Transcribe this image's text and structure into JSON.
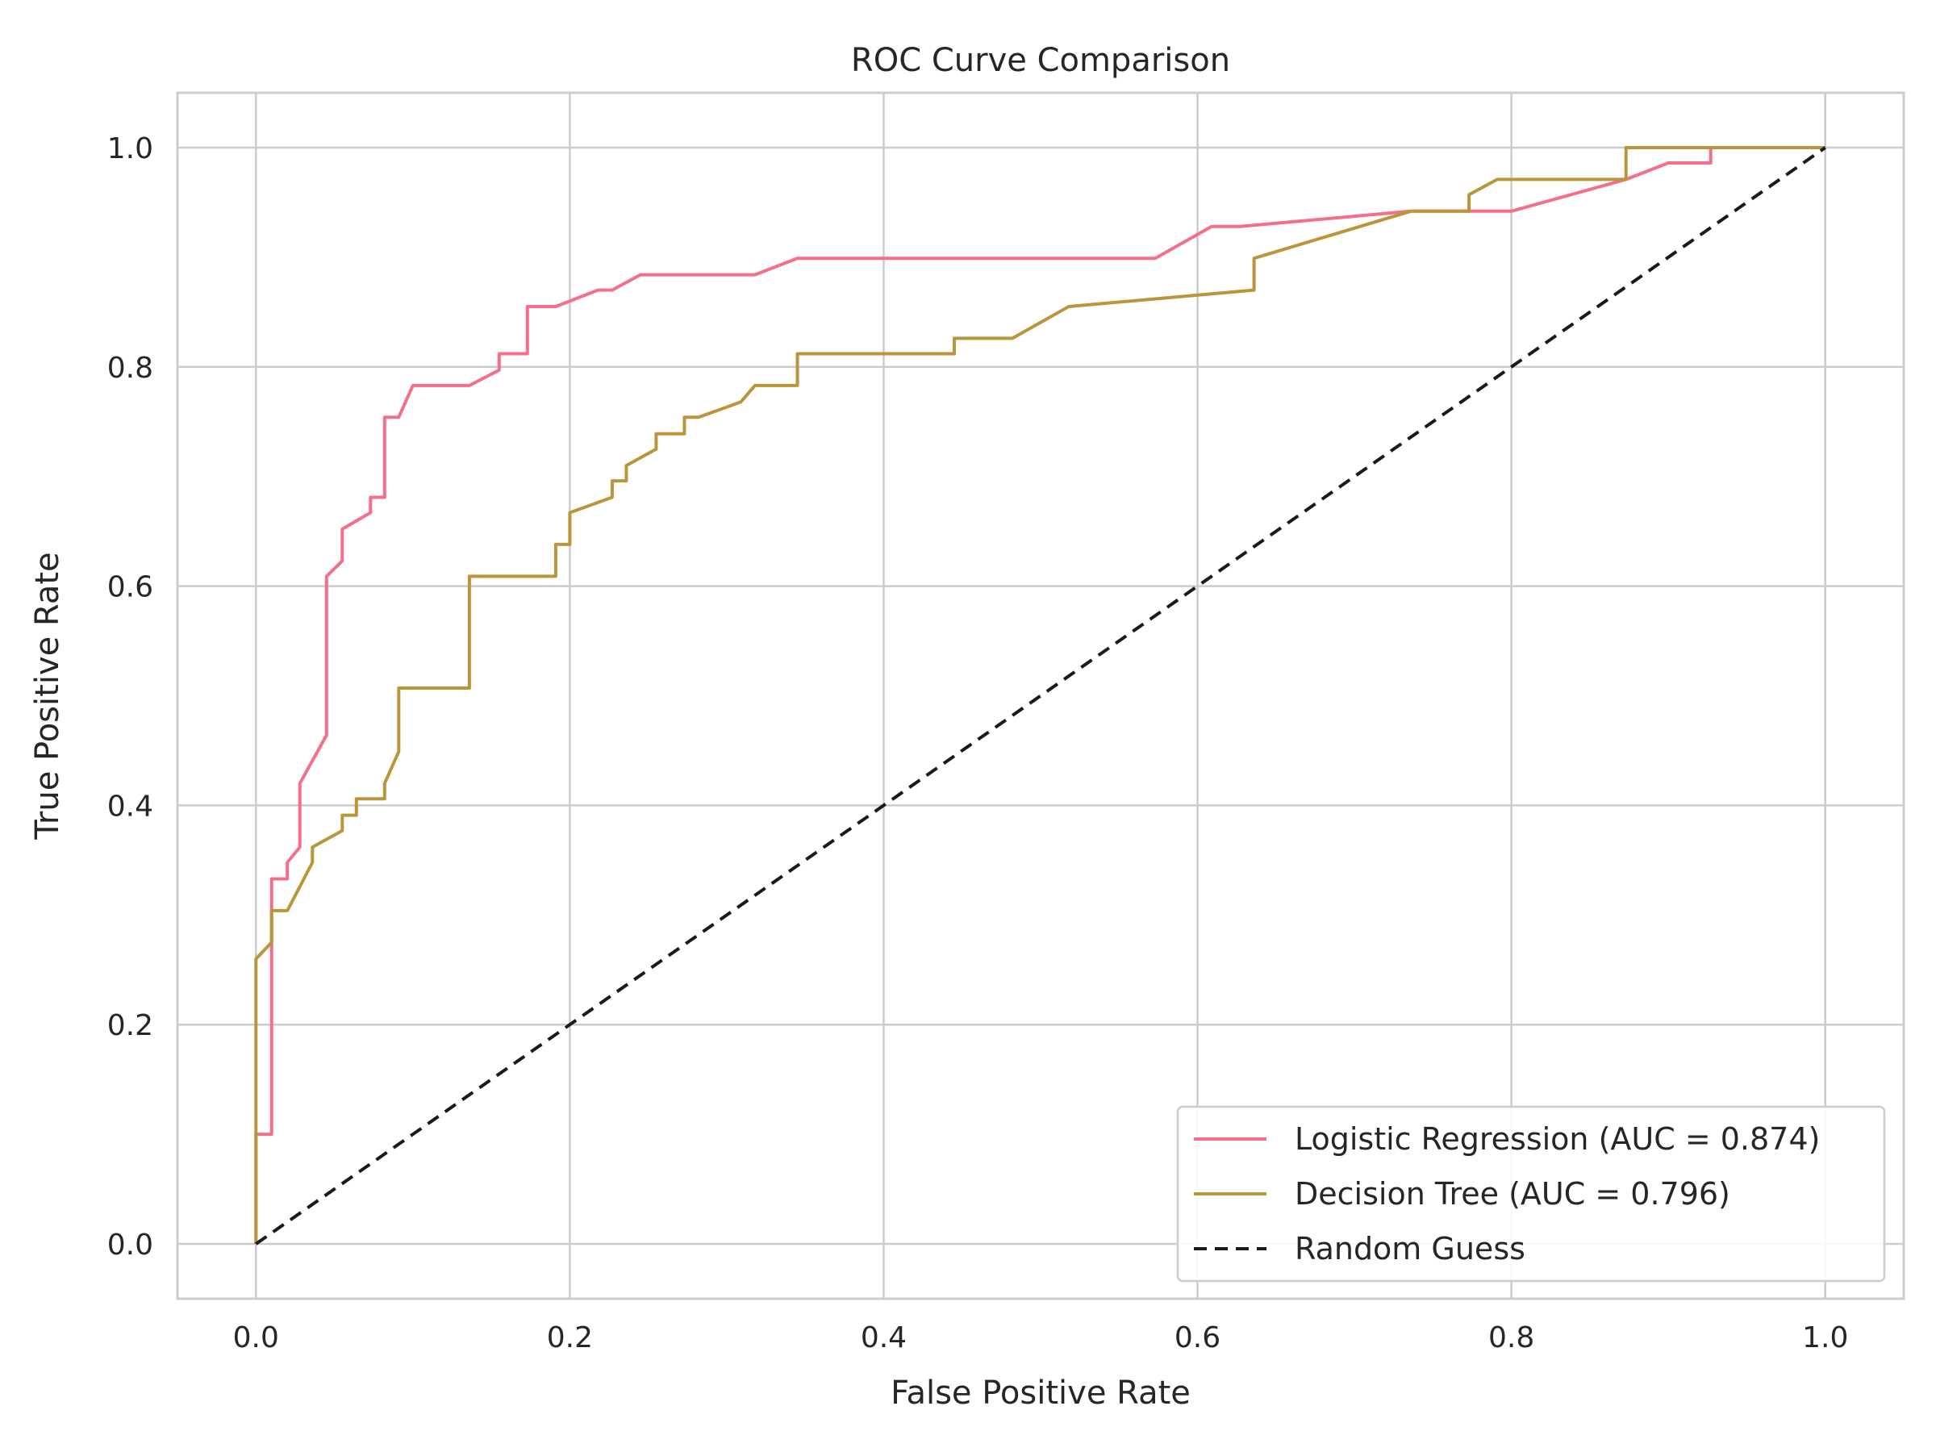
{
  "chart_data": {
    "type": "line",
    "title": "ROC Curve Comparison",
    "xlabel": "False Positive Rate",
    "ylabel": "True Positive Rate",
    "xlim": [
      -0.05,
      1.05
    ],
    "ylim": [
      -0.05,
      1.05
    ],
    "x_ticks": [
      0.0,
      0.2,
      0.4,
      0.6,
      0.8,
      1.0
    ],
    "y_ticks": [
      0.0,
      0.2,
      0.4,
      0.6,
      0.8,
      1.0
    ],
    "x_tick_labels": [
      "0.0",
      "0.2",
      "0.4",
      "0.6",
      "0.8",
      "1.0"
    ],
    "y_tick_labels": [
      "0.0",
      "0.2",
      "0.4",
      "0.6",
      "0.8",
      "1.0"
    ],
    "grid": true,
    "legend_position": "lower-right",
    "series": [
      {
        "name": "Logistic Regression (AUC = 0.874)",
        "color": "#f37088",
        "style": "solid",
        "x": [
          0.0,
          0.0,
          0.0,
          0.01,
          0.01,
          0.01,
          0.02,
          0.02,
          0.028,
          0.028,
          0.045,
          0.045,
          0.055,
          0.055,
          0.073,
          0.073,
          0.082,
          0.082,
          0.091,
          0.1,
          0.136,
          0.155,
          0.155,
          0.173,
          0.173,
          0.191,
          0.218,
          0.227,
          0.245,
          0.318,
          0.345,
          0.573,
          0.609,
          0.627,
          0.736,
          0.8,
          0.873,
          0.9,
          0.927,
          0.927,
          1.0
        ],
        "y": [
          0.0,
          0.1,
          0.1,
          0.1,
          0.333,
          0.333,
          0.333,
          0.348,
          0.362,
          0.42,
          0.464,
          0.609,
          0.623,
          0.652,
          0.667,
          0.681,
          0.681,
          0.754,
          0.754,
          0.783,
          0.783,
          0.797,
          0.812,
          0.812,
          0.855,
          0.855,
          0.87,
          0.87,
          0.884,
          0.884,
          0.899,
          0.899,
          0.928,
          0.928,
          0.942,
          0.942,
          0.971,
          0.986,
          0.986,
          1.0,
          1.0
        ]
      },
      {
        "name": "Decision Tree (AUC = 0.796)",
        "color": "#b9963a",
        "style": "solid",
        "x": [
          0.0,
          0.0,
          0.01,
          0.01,
          0.02,
          0.036,
          0.036,
          0.055,
          0.055,
          0.064,
          0.064,
          0.082,
          0.082,
          0.091,
          0.091,
          0.136,
          0.136,
          0.191,
          0.191,
          0.2,
          0.2,
          0.227,
          0.227,
          0.236,
          0.236,
          0.255,
          0.255,
          0.273,
          0.273,
          0.282,
          0.309,
          0.318,
          0.345,
          0.345,
          0.445,
          0.445,
          0.482,
          0.518,
          0.636,
          0.636,
          0.736,
          0.773,
          0.773,
          0.791,
          0.873,
          0.873,
          1.0
        ],
        "y": [
          0.0,
          0.26,
          0.275,
          0.304,
          0.304,
          0.348,
          0.362,
          0.377,
          0.391,
          0.391,
          0.406,
          0.406,
          0.42,
          0.449,
          0.507,
          0.507,
          0.609,
          0.609,
          0.638,
          0.638,
          0.667,
          0.681,
          0.696,
          0.696,
          0.71,
          0.725,
          0.739,
          0.739,
          0.754,
          0.754,
          0.768,
          0.783,
          0.783,
          0.812,
          0.812,
          0.826,
          0.826,
          0.855,
          0.87,
          0.899,
          0.942,
          0.942,
          0.957,
          0.971,
          0.971,
          1.0,
          1.0
        ]
      },
      {
        "name": "Random Guess",
        "color": "#1a1a1a",
        "style": "dashed",
        "x": [
          0.0,
          1.0
        ],
        "y": [
          0.0,
          1.0
        ]
      }
    ]
  }
}
